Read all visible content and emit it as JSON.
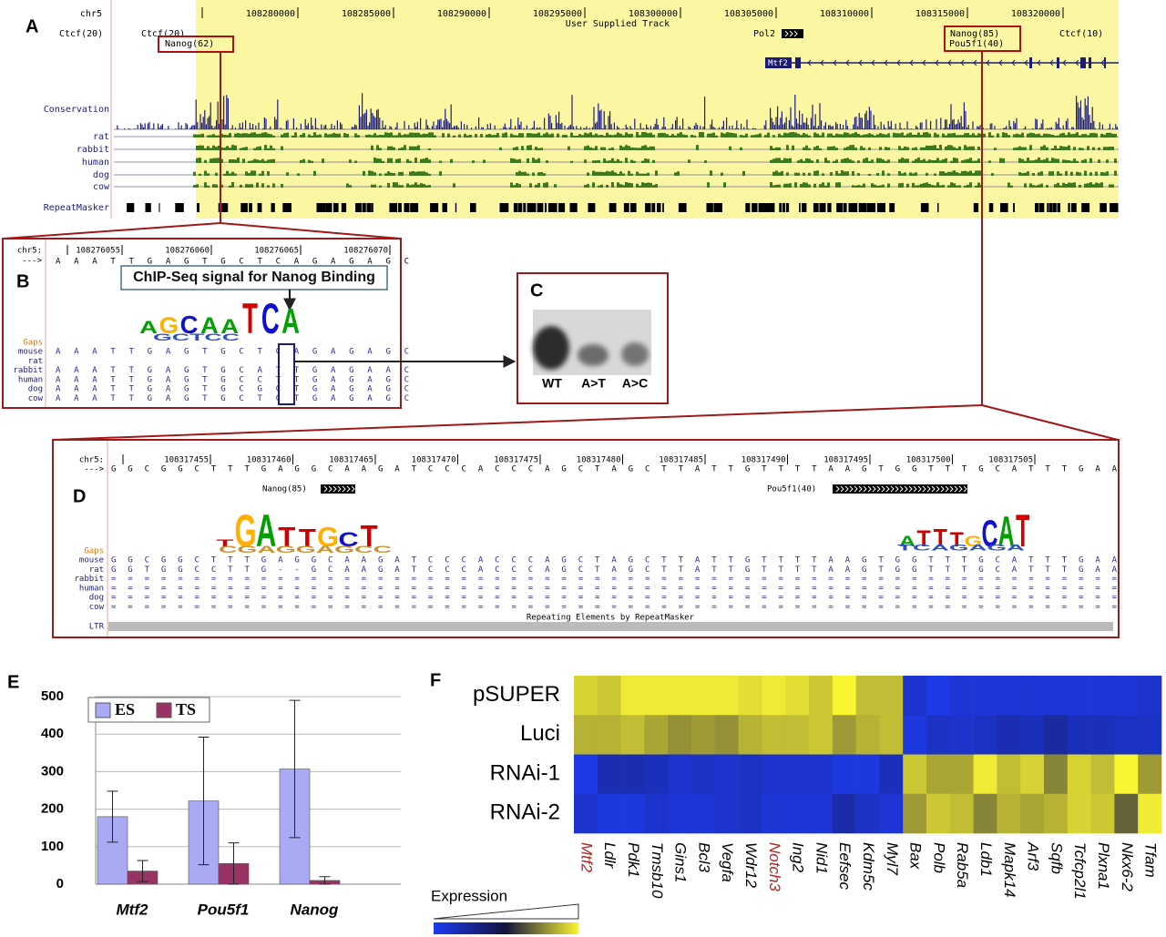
{
  "panel_a": {
    "label": "A",
    "chrom": "chr5",
    "coords": [
      "108280000",
      "108285000",
      "108290000",
      "108295000",
      "108300000",
      "108305000",
      "108310000",
      "108315000",
      "108320000"
    ],
    "track_title": "User Supplied Track",
    "features": [
      "Ctcf(20)",
      "Ctcf(20)",
      "Nanog(62)",
      "Pol2",
      "Nanog(85)",
      "Pou5f1(40)",
      "Ctcf(10)"
    ],
    "gene": "Mtf2",
    "tracks": [
      "Conservation",
      "rat",
      "rabbit",
      "human",
      "dog",
      "cow",
      "RepeatMasker"
    ]
  },
  "panel_b": {
    "label": "B",
    "chrom": "chr5:",
    "strand": "--->",
    "coords": [
      "108276055",
      "108276060",
      "108276065",
      "108276070"
    ],
    "sequence": "AAATTGAGTGCTCAGAGAGC",
    "callout": "ChIP-Seq signal for Nanog Binding",
    "logo": [
      "A",
      "G",
      "C",
      "A",
      "A",
      "T",
      "C",
      "A"
    ],
    "logo_lower": "GCTCC",
    "gaps_label": "Gaps",
    "alignments": [
      {
        "name": "mouse",
        "seq": "AAATTGAGTGCTCAGAGAGC"
      },
      {
        "name": "rat"
      },
      {
        "name": "rabbit",
        "seq": "AAATTGAGTGCATTGAGAAC"
      },
      {
        "name": "human",
        "seq": "AAATTGAGTGCCTTGAGAGC"
      },
      {
        "name": "dog",
        "seq": "AAATTGAGTGCGCTGAGAGC"
      },
      {
        "name": "cow",
        "seq": "AAATTGAGTGCTCTGAGAGC"
      }
    ]
  },
  "panel_c": {
    "label": "C",
    "lanes": [
      "WT",
      "A>T",
      "A>C"
    ]
  },
  "panel_d": {
    "label": "D",
    "chrom": "chr5:",
    "strand": "--->",
    "coords": [
      "108317455",
      "108317460",
      "108317465",
      "108317470",
      "108317475",
      "108317480",
      "108317485",
      "108317490",
      "108317495",
      "108317500",
      "108317505"
    ],
    "sequence": "GGCGGCTTTGAGGCAAGATCCCACCCAGCTAGCTTATTGTTTTAAGTGGTTTGCATTTGAA",
    "features": [
      "Nanog(85)",
      "Pou5f1(40)"
    ],
    "logos": [
      [
        "T",
        "G",
        "A",
        "T",
        "T",
        "G",
        "C",
        "T"
      ],
      [
        "A",
        "T",
        "T",
        "T",
        "G",
        "C",
        "A",
        "T"
      ]
    ],
    "logo_lowers": [
      "CGAGGAGCC",
      "TCAGAGA"
    ],
    "gaps_label": "Gaps",
    "alignments": [
      {
        "name": "mouse",
        "seq": "GGCGGCTTTGAGGCAAGATCCCACCCAGCTAGCTTATTGTTTTAAGTGGTTTGCATTTGAA"
      },
      {
        "name": "rat",
        "seq": "GGTGGCCTTG--GCAAGATCCCACCCAGCTAGCTTATTGTTTTAAGTGGTTTGCATTTGAA"
      },
      {
        "name": "rabbit",
        "seq": "============================================================="
      },
      {
        "name": "human",
        "seq": "============================================================="
      },
      {
        "name": "dog",
        "seq": "============================================================="
      },
      {
        "name": "cow",
        "seq": "============================================================="
      }
    ],
    "repeat_label": "LTR",
    "repeat_text": "Repeating Elements by RepeatMasker"
  },
  "chart_data": [
    {
      "type": "bar",
      "label": "E",
      "categories": [
        "Mtf2",
        "Pou5f1",
        "Nanog"
      ],
      "series": [
        {
          "name": "ES",
          "color": "#a9a9f4",
          "values": [
            180,
            222,
            307
          ],
          "errors": [
            68,
            170,
            183
          ]
        },
        {
          "name": "TS",
          "color": "#993366",
          "values": [
            35,
            55,
            10
          ],
          "errors": [
            28,
            55,
            10
          ]
        }
      ],
      "ylim": [
        0,
        500
      ],
      "yticks": [
        0,
        100,
        200,
        300,
        400,
        500
      ],
      "grid": true,
      "legend": "top-left"
    },
    {
      "type": "heatmap",
      "label": "F",
      "rows": [
        "pSUPER",
        "Luci",
        "RNAi-1",
        "RNAi-2"
      ],
      "columns": [
        "Mtf2",
        "Ldlr",
        "Pdk1",
        "Tmsb10",
        "Gins1",
        "Bcl3",
        "Vegfa",
        "Wdr12",
        "Notch3",
        "Ing2",
        "Nid1",
        "Eefsec",
        "Kdm5c",
        "Myl7",
        "Bax",
        "Polb",
        "Rab5a",
        "Ldb1",
        "Mapk14",
        "Arf3",
        "Sqfb",
        "Tcfcp2l1",
        "Plxna1",
        "Nkx6-2",
        "Tfam"
      ],
      "highlight_columns": [
        0,
        8
      ],
      "highlight_color": "#b22222",
      "values": [
        [
          0.85,
          0.8,
          0.95,
          0.95,
          0.95,
          0.95,
          0.95,
          0.9,
          0.95,
          0.9,
          0.8,
          1.0,
          0.75,
          0.75,
          -0.8,
          -0.95,
          -0.85,
          -0.85,
          -0.85,
          -0.85,
          -0.85,
          -0.85,
          -0.85,
          -0.85,
          -0.8
        ],
        [
          0.7,
          0.7,
          0.75,
          0.65,
          0.55,
          0.6,
          0.55,
          0.7,
          0.75,
          0.75,
          0.8,
          0.6,
          0.7,
          0.75,
          -0.9,
          -0.75,
          -0.8,
          -0.75,
          -0.65,
          -0.7,
          -0.55,
          -0.7,
          -0.7,
          -0.75,
          -0.75
        ],
        [
          -0.95,
          -0.65,
          -0.65,
          -0.7,
          -0.8,
          -0.75,
          -0.8,
          -0.75,
          -0.8,
          -0.8,
          -0.8,
          -0.9,
          -0.9,
          -0.7,
          0.8,
          0.65,
          0.65,
          0.95,
          0.75,
          0.85,
          0.5,
          0.85,
          0.75,
          1.0,
          0.6
        ],
        [
          -0.8,
          -0.9,
          -0.9,
          -0.8,
          -0.85,
          -0.85,
          -0.8,
          -0.75,
          -0.85,
          -0.85,
          -0.85,
          -0.6,
          -0.75,
          -0.85,
          0.6,
          0.8,
          0.75,
          0.5,
          0.7,
          0.65,
          0.7,
          0.85,
          0.8,
          0.35,
          0.95
        ]
      ],
      "vlim": [
        -1,
        1
      ],
      "legend_title": "Expression"
    }
  ]
}
